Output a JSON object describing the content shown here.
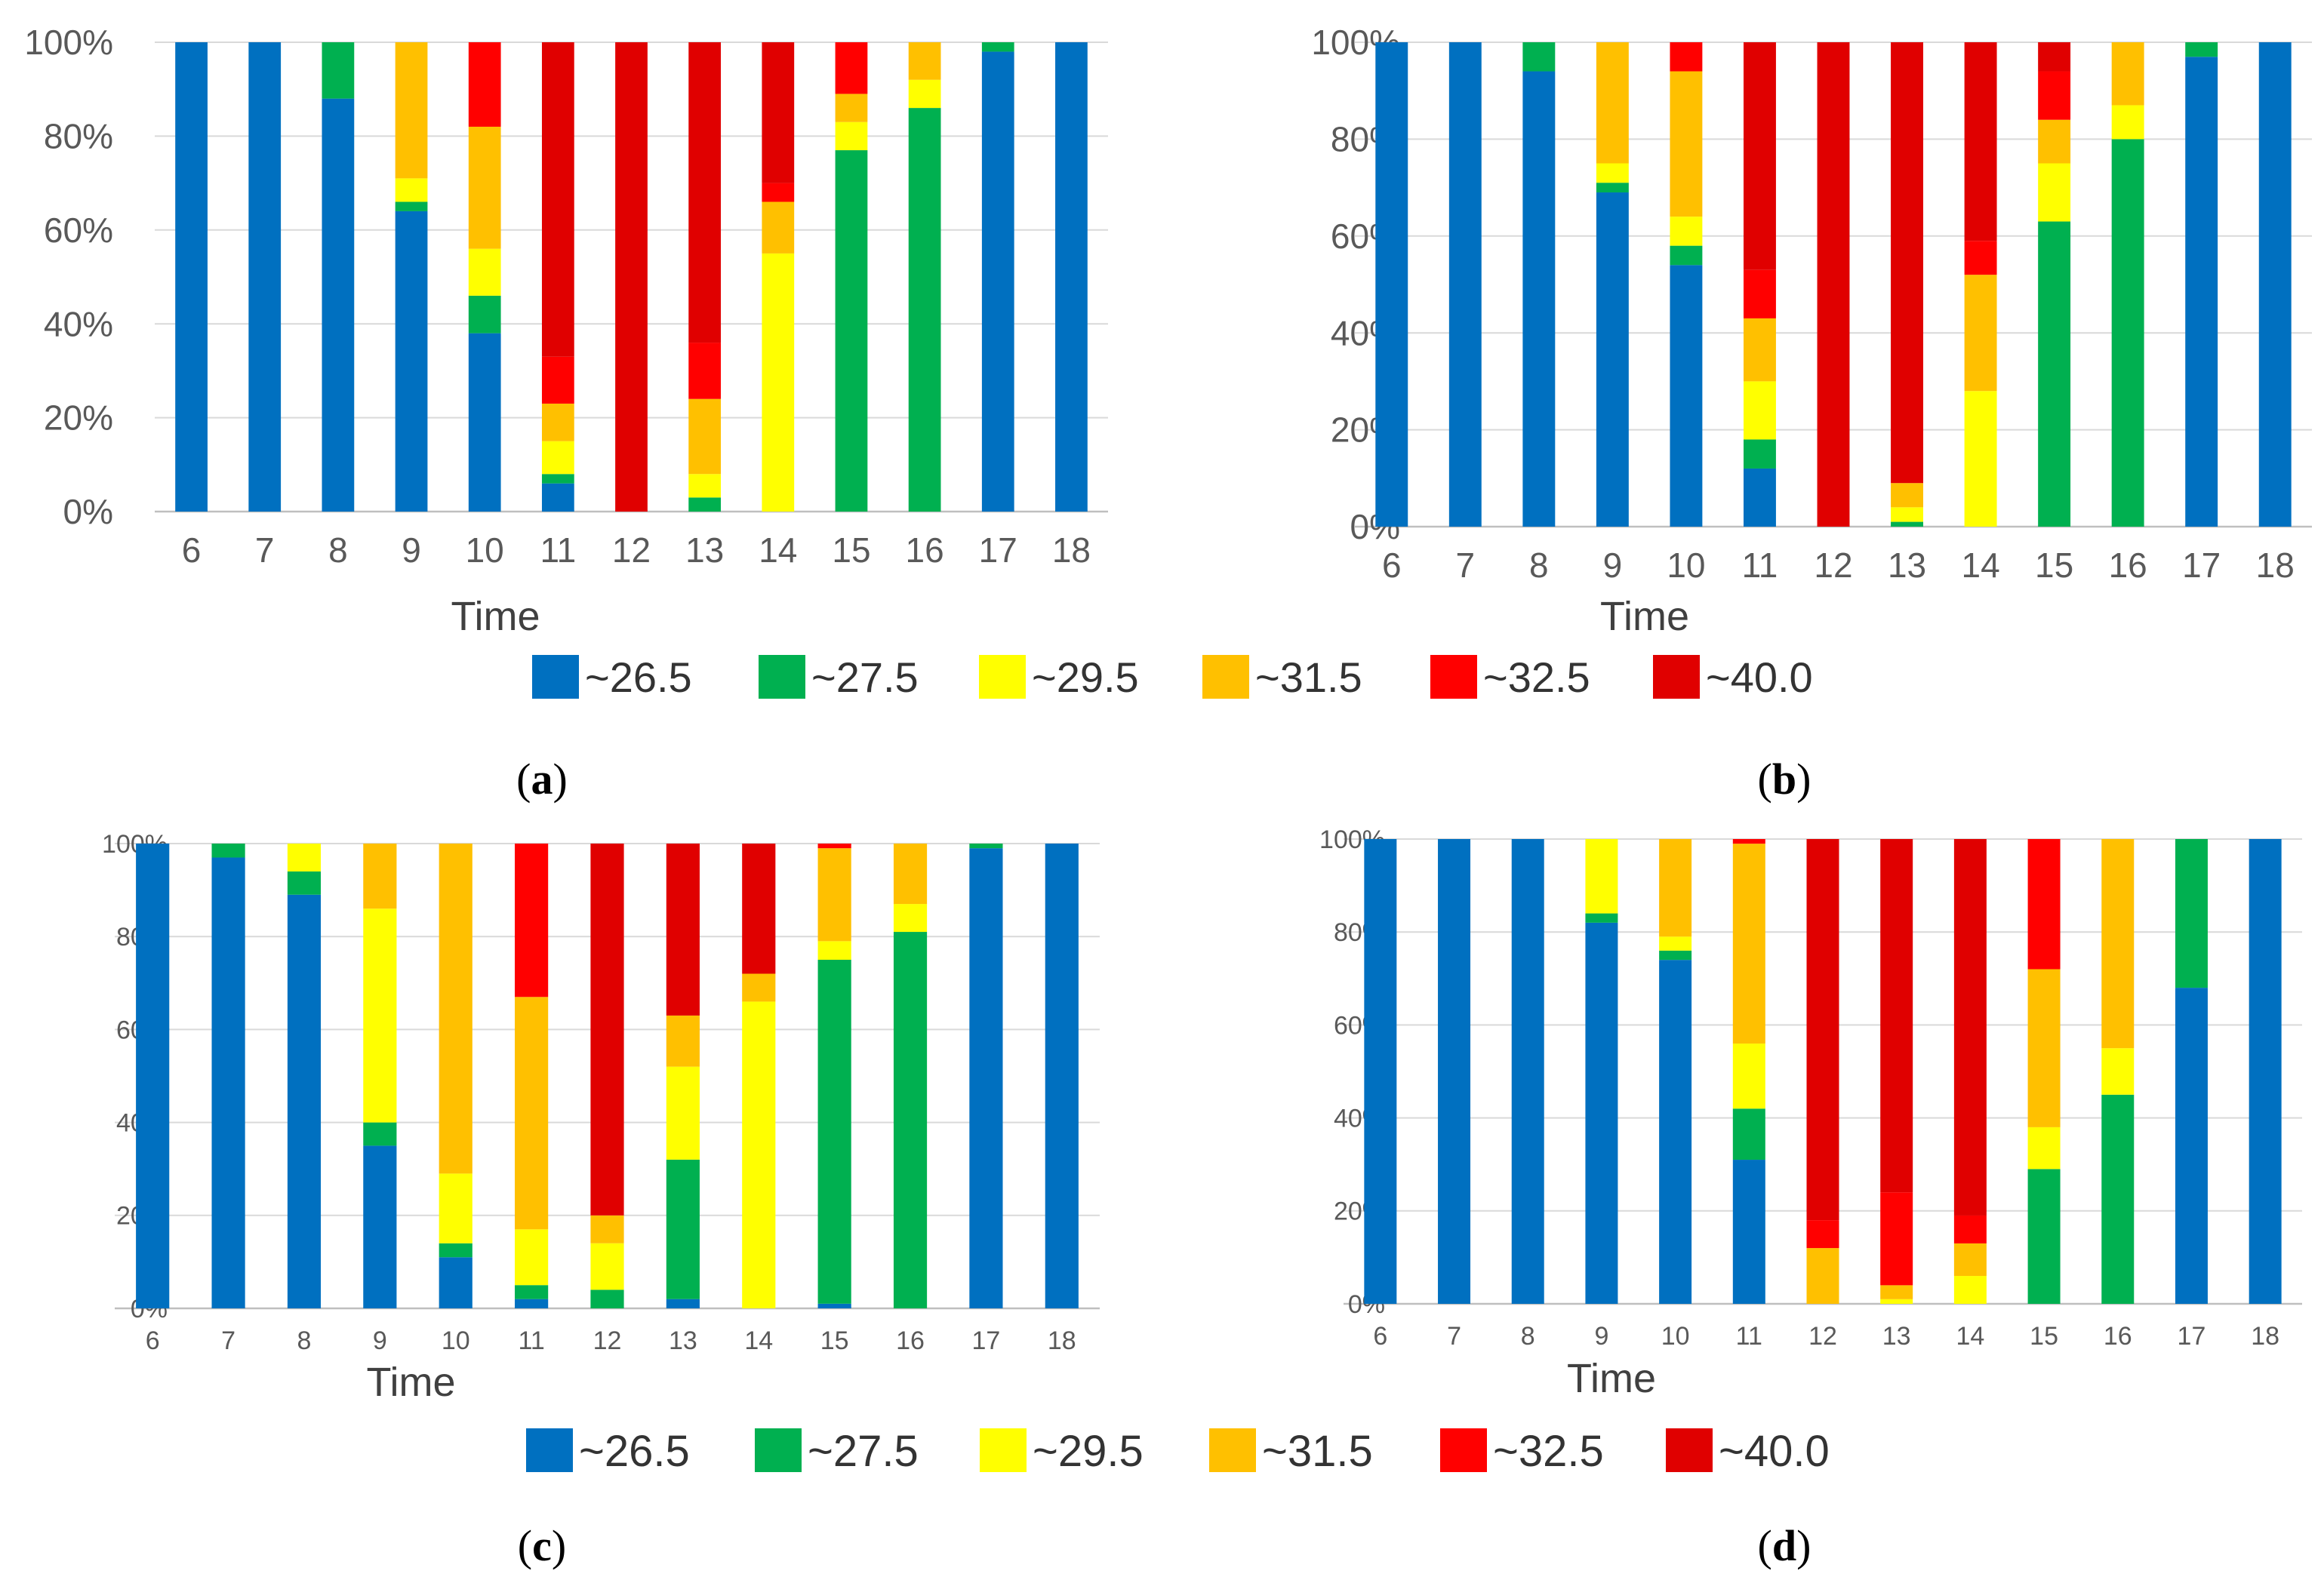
{
  "figure": {
    "panel_labels": [
      "a",
      "b",
      "c",
      "d"
    ]
  },
  "legend": {
    "items": [
      {
        "label": "~26.5",
        "color": "#0070C0"
      },
      {
        "label": "~27.5",
        "color": "#00B050"
      },
      {
        "label": "~29.5",
        "color": "#FFFF00"
      },
      {
        "label": "~31.5",
        "color": "#FFC000"
      },
      {
        "label": "~32.5",
        "color": "#FF0000"
      },
      {
        "label": "~40.0",
        "color": "#E00000"
      }
    ]
  },
  "chart_data": [
    {
      "panel": "a",
      "type": "bar",
      "stacked": "percent",
      "xlabel": "Time",
      "ylabel": "",
      "ylim": [
        0,
        100
      ],
      "yticks": [
        "0%",
        "20%",
        "40%",
        "60%",
        "80%",
        "100%"
      ],
      "categories": [
        "6",
        "7",
        "8",
        "9",
        "10",
        "11",
        "12",
        "13",
        "14",
        "15",
        "16",
        "17",
        "18"
      ],
      "series": [
        {
          "name": "~26.5",
          "values": [
            100,
            100,
            88,
            64,
            38,
            6,
            0,
            0,
            0,
            0,
            0,
            98,
            100
          ]
        },
        {
          "name": "~27.5",
          "values": [
            0,
            0,
            12,
            2,
            8,
            2,
            0,
            3,
            0,
            77,
            86,
            2,
            0
          ]
        },
        {
          "name": "~29.5",
          "values": [
            0,
            0,
            0,
            5,
            10,
            7,
            0,
            5,
            55,
            6,
            6,
            0,
            0
          ]
        },
        {
          "name": "~31.5",
          "values": [
            0,
            0,
            0,
            29,
            26,
            8,
            0,
            16,
            11,
            6,
            8,
            0,
            0
          ]
        },
        {
          "name": "~32.5",
          "values": [
            0,
            0,
            0,
            0,
            18,
            10,
            0,
            12,
            4,
            11,
            0,
            0,
            0
          ]
        },
        {
          "name": "~40.0",
          "values": [
            0,
            0,
            0,
            0,
            0,
            67,
            100,
            64,
            30,
            0,
            0,
            0,
            0
          ]
        }
      ]
    },
    {
      "panel": "b",
      "type": "bar",
      "stacked": "percent",
      "xlabel": "Time",
      "ylabel": "",
      "ylim": [
        0,
        100
      ],
      "yticks": [
        "0%",
        "20%",
        "40%",
        "60%",
        "80%",
        "100%"
      ],
      "categories": [
        "6",
        "7",
        "8",
        "9",
        "10",
        "11",
        "12",
        "13",
        "14",
        "15",
        "16",
        "17",
        "18"
      ],
      "series": [
        {
          "name": "~26.5",
          "values": [
            100,
            100,
            94,
            69,
            54,
            12,
            0,
            0,
            0,
            0,
            0,
            97,
            100
          ]
        },
        {
          "name": "~27.5",
          "values": [
            0,
            0,
            6,
            2,
            4,
            6,
            0,
            1,
            0,
            63,
            80,
            3,
            0
          ]
        },
        {
          "name": "~29.5",
          "values": [
            0,
            0,
            0,
            4,
            6,
            12,
            0,
            3,
            28,
            12,
            7,
            0,
            0
          ]
        },
        {
          "name": "~31.5",
          "values": [
            0,
            0,
            0,
            25,
            30,
            13,
            0,
            5,
            24,
            9,
            13,
            0,
            0
          ]
        },
        {
          "name": "~32.5",
          "values": [
            0,
            0,
            0,
            0,
            6,
            10,
            0,
            0,
            7,
            10,
            0,
            0,
            0
          ]
        },
        {
          "name": "~40.0",
          "values": [
            0,
            0,
            0,
            0,
            0,
            47,
            100,
            91,
            41,
            6,
            0,
            0,
            0
          ]
        }
      ]
    },
    {
      "panel": "c",
      "type": "bar",
      "stacked": "percent",
      "xlabel": "Time",
      "ylabel": "",
      "ylim": [
        0,
        100
      ],
      "yticks": [
        "0%",
        "20%",
        "40%",
        "60%",
        "80%",
        "100%"
      ],
      "categories": [
        "6",
        "7",
        "8",
        "9",
        "10",
        "11",
        "12",
        "13",
        "14",
        "15",
        "16",
        "17",
        "18"
      ],
      "series": [
        {
          "name": "~26.5",
          "values": [
            100,
            97,
            89,
            35,
            11,
            2,
            0,
            2,
            0,
            1,
            0,
            99,
            100
          ]
        },
        {
          "name": "~27.5",
          "values": [
            0,
            3,
            5,
            5,
            3,
            3,
            4,
            30,
            0,
            74,
            81,
            1,
            0
          ]
        },
        {
          "name": "~29.5",
          "values": [
            0,
            0,
            6,
            46,
            15,
            12,
            10,
            20,
            66,
            4,
            6,
            0,
            0
          ]
        },
        {
          "name": "~31.5",
          "values": [
            0,
            0,
            0,
            14,
            71,
            50,
            6,
            11,
            6,
            20,
            13,
            0,
            0
          ]
        },
        {
          "name": "~32.5",
          "values": [
            0,
            0,
            0,
            0,
            0,
            33,
            0,
            0,
            0,
            1,
            0,
            0,
            0
          ]
        },
        {
          "name": "~40.0",
          "values": [
            0,
            0,
            0,
            0,
            0,
            0,
            80,
            37,
            28,
            0,
            0,
            0,
            0
          ]
        }
      ]
    },
    {
      "panel": "d",
      "type": "bar",
      "stacked": "percent",
      "xlabel": "Time",
      "ylabel": "",
      "ylim": [
        0,
        100
      ],
      "yticks": [
        "0%",
        "20%",
        "40%",
        "60%",
        "80%",
        "100%"
      ],
      "categories": [
        "6",
        "7",
        "8",
        "9",
        "10",
        "11",
        "12",
        "13",
        "14",
        "15",
        "16",
        "17",
        "18"
      ],
      "series": [
        {
          "name": "~26.5",
          "values": [
            100,
            100,
            100,
            82,
            74,
            31,
            0,
            0,
            0,
            0,
            0,
            68,
            100
          ]
        },
        {
          "name": "~27.5",
          "values": [
            0,
            0,
            0,
            2,
            2,
            11,
            0,
            0,
            0,
            29,
            45,
            32,
            0
          ]
        },
        {
          "name": "~29.5",
          "values": [
            0,
            0,
            0,
            16,
            3,
            14,
            0,
            1,
            6,
            9,
            10,
            0,
            0
          ]
        },
        {
          "name": "~31.5",
          "values": [
            0,
            0,
            0,
            0,
            21,
            43,
            12,
            3,
            7,
            34,
            45,
            0,
            0
          ]
        },
        {
          "name": "~32.5",
          "values": [
            0,
            0,
            0,
            0,
            0,
            1,
            6,
            20,
            6,
            28,
            0,
            0,
            0
          ]
        },
        {
          "name": "~40.0",
          "values": [
            0,
            0,
            0,
            0,
            0,
            0,
            82,
            76,
            81,
            0,
            0,
            0,
            0
          ]
        }
      ]
    }
  ]
}
